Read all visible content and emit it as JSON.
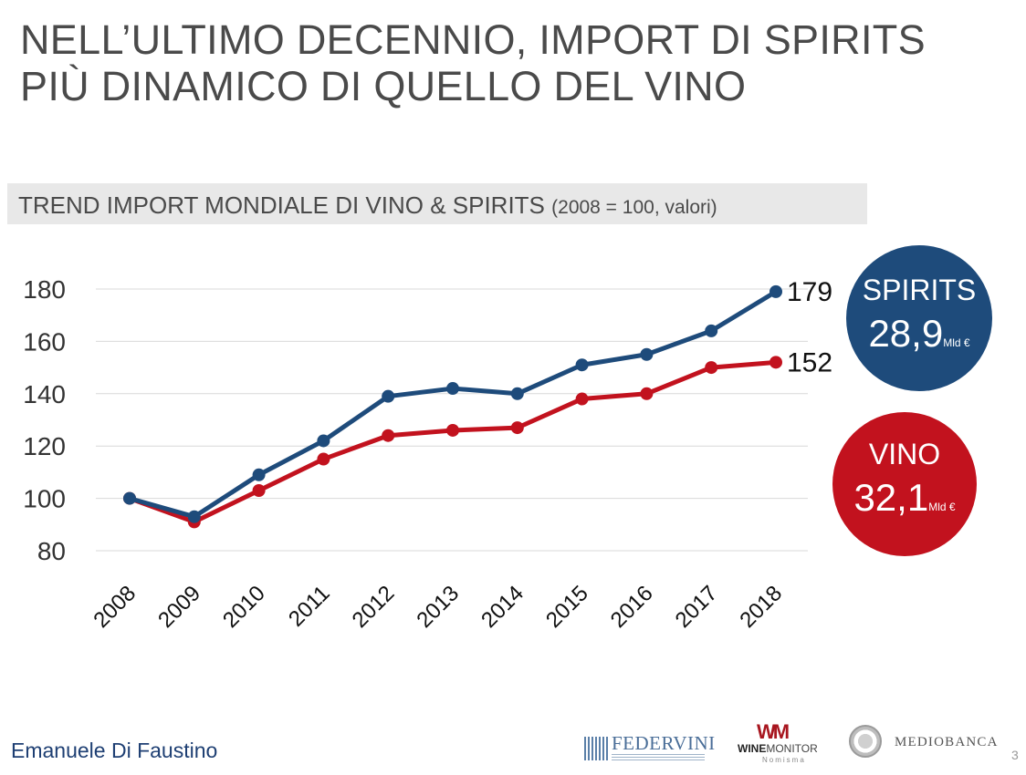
{
  "title": {
    "line1": "NELL’ULTIMO DECENNIO, IMPORT DI SPIRITS",
    "line2": "PIÙ DINAMICO DI QUELLO DEL VINO"
  },
  "subtitle": {
    "main": "TREND IMPORT MONDIALE DI VINO & SPIRITS",
    "note": "(2008 = 100, valori)"
  },
  "chart_data": {
    "type": "line",
    "categories": [
      "2008",
      "2009",
      "2010",
      "2011",
      "2012",
      "2013",
      "2014",
      "2015",
      "2016",
      "2017",
      "2018"
    ],
    "series": [
      {
        "name": "Spirits",
        "color": "#1e4b7b",
        "values": [
          100,
          93,
          109,
          122,
          139,
          142,
          140,
          151,
          155,
          164,
          179
        ]
      },
      {
        "name": "Vino",
        "color": "#c2121e",
        "values": [
          100,
          91,
          103,
          115,
          124,
          126,
          127,
          138,
          140,
          150,
          152
        ]
      }
    ],
    "end_labels": [
      "179",
      "152"
    ],
    "yticks": [
      80,
      100,
      120,
      140,
      160,
      180
    ],
    "ylim": [
      80,
      180
    ],
    "grid": true,
    "legend": "bubbles-right"
  },
  "bubbles": {
    "spirits": {
      "label": "SPIRITS",
      "value": "28,9",
      "unit": "Mld €",
      "color": "#1e4b7b"
    },
    "vino": {
      "label": "VINO",
      "value": "32,1",
      "unit": "Mld €",
      "color": "#c2121e"
    }
  },
  "footer": {
    "author": "Emanuele Di Faustino",
    "page_number": "3",
    "logos": {
      "federvini": "FEDERVINI",
      "winemonitor_brand": "WM",
      "winemonitor_wine": "WINE",
      "winemonitor_monitor": "MONITOR",
      "winemonitor_sub": "Nomisma",
      "mediobanca": "MEDIOBANCA"
    }
  }
}
